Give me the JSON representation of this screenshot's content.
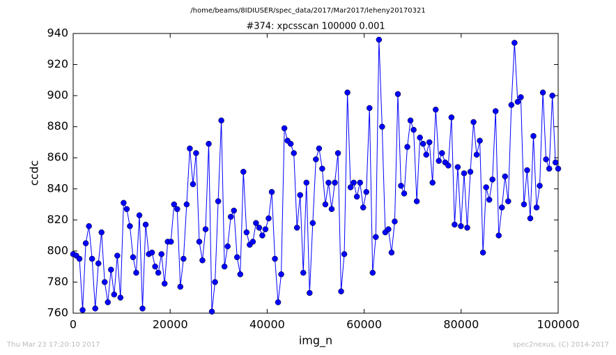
{
  "chart_data": {
    "type": "line",
    "suptitle": "/home/beams/8IDIUSER/spec_data/2017/Mar2017/leheny20170321",
    "title": "#374: xpcsscan 100000 0.001",
    "xlabel": "img_n",
    "ylabel": "ccdc",
    "footer_left": "Thu Mar 23 17:20:10 2017",
    "footer_right": "spec2nexus, (C) 2014-2017",
    "x": [
      0,
      650,
      1300,
      1950,
      2600,
      3250,
      3900,
      4550,
      5200,
      5850,
      6500,
      7150,
      7800,
      8450,
      9100,
      9750,
      10400,
      11050,
      11700,
      12350,
      13000,
      13650,
      14300,
      14950,
      15600,
      16250,
      16900,
      17550,
      18200,
      18850,
      19500,
      20150,
      20800,
      21450,
      22100,
      22750,
      23400,
      24050,
      24700,
      25350,
      26000,
      26650,
      27300,
      27950,
      28600,
      29250,
      29900,
      30550,
      31200,
      31850,
      32500,
      33150,
      33800,
      34450,
      35100,
      35750,
      36400,
      37050,
      37700,
      38350,
      39000,
      39650,
      40300,
      40950,
      41600,
      42250,
      42900,
      43550,
      44200,
      44850,
      45500,
      46150,
      46800,
      47450,
      48100,
      48750,
      49400,
      50050,
      50700,
      51350,
      52000,
      52650,
      53300,
      53950,
      54600,
      55250,
      55900,
      56550,
      57200,
      57850,
      58500,
      59150,
      59800,
      60450,
      61100,
      61750,
      62400,
      63050,
      63700,
      64350,
      65000,
      65650,
      66300,
      66950,
      67600,
      68250,
      68900,
      69550,
      70200,
      70850,
      71500,
      72150,
      72800,
      73450,
      74100,
      74750,
      75400,
      76050,
      76700,
      77350,
      78000,
      78650,
      79300,
      79950,
      80600,
      81250,
      81900,
      82550,
      83200,
      83850,
      84500,
      85150,
      85800,
      86450,
      87100,
      87750,
      88400,
      89050,
      89700,
      90350,
      91000,
      91650,
      92300,
      92950,
      93600,
      94250,
      94900,
      95550,
      96200,
      96850,
      97500,
      98150,
      98800,
      99450,
      100000
    ],
    "series": [
      {
        "color": "#0000ff",
        "values": [
          798,
          797,
          795,
          762,
          805,
          816,
          795,
          763,
          792,
          812,
          780,
          767,
          788,
          772,
          797,
          770,
          831,
          827,
          816,
          796,
          786,
          823,
          763,
          817,
          798,
          799,
          790,
          786,
          798,
          779,
          806,
          806,
          830,
          827,
          777,
          795,
          830,
          866,
          843,
          863,
          806,
          794,
          814,
          869,
          761,
          780,
          832,
          884,
          790,
          803,
          822,
          826,
          796,
          785,
          851,
          812,
          804,
          806,
          818,
          815,
          810,
          814,
          821,
          838,
          795,
          767,
          785,
          879,
          871,
          869,
          863,
          815,
          836,
          786,
          844,
          773,
          818,
          859,
          866,
          853,
          830,
          844,
          827,
          844,
          863,
          774,
          798,
          902,
          841,
          844,
          835,
          844,
          828,
          838,
          892,
          786,
          809,
          936,
          880,
          812,
          814,
          799,
          819,
          901,
          842,
          837,
          867,
          884,
          878,
          832,
          873,
          869,
          862,
          870,
          844,
          891,
          858,
          863,
          857,
          855,
          886,
          817,
          854,
          816,
          850,
          815,
          851,
          883,
          862,
          871,
          799,
          841,
          833,
          846,
          890,
          810,
          828,
          848,
          832,
          894,
          934,
          896,
          899,
          830,
          852,
          821,
          874,
          828,
          842,
          902,
          859,
          853,
          900,
          857,
          853
        ]
      }
    ],
    "xlim": [
      0,
      100000
    ],
    "xticks": [
      0,
      20000,
      40000,
      60000,
      80000,
      100000
    ],
    "ylim": [
      760,
      940
    ],
    "yticks": [
      760,
      780,
      800,
      820,
      840,
      860,
      880,
      900,
      920,
      940
    ]
  }
}
